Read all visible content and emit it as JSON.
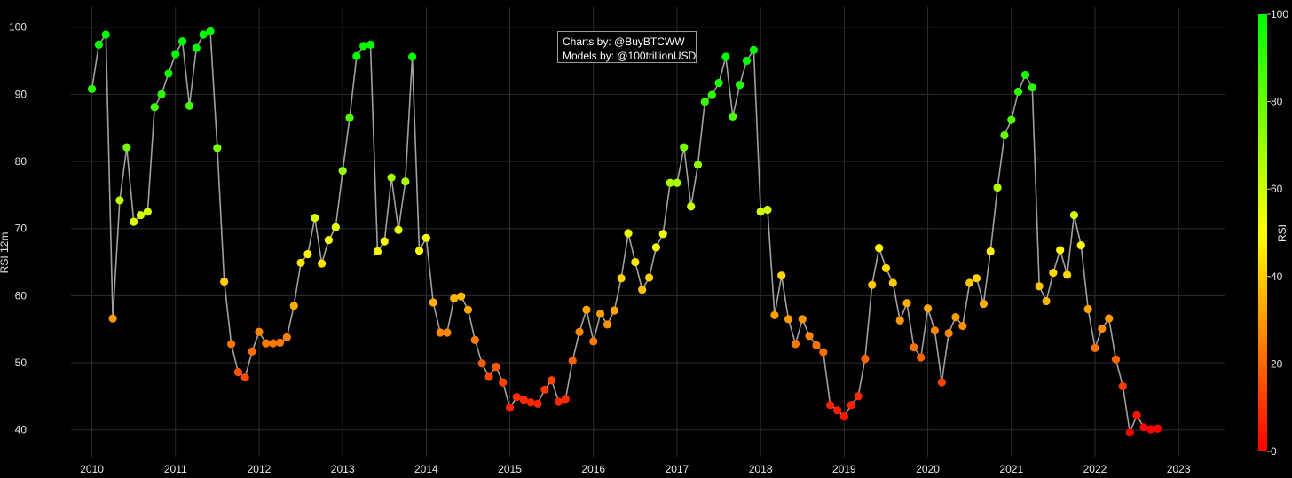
{
  "credits": {
    "line1": "Charts by: @BuyBTCWW",
    "line2": "Models by: @100trillionUSD"
  },
  "chart_data": {
    "type": "scatter",
    "title": "",
    "xlabel": "",
    "ylabel": "RSI 12m",
    "xlim": [
      2009.75,
      2023.55
    ],
    "ylim": [
      36,
      103
    ],
    "y_ticks": [
      40,
      50,
      60,
      70,
      80,
      90,
      100
    ],
    "x_ticks": [
      2010,
      2011,
      2012,
      2013,
      2014,
      2015,
      2016,
      2017,
      2018,
      2019,
      2020,
      2021,
      2022,
      2023
    ],
    "grid": true,
    "line_color": "#a0a0a0",
    "colorbar": {
      "label": "RSI",
      "ticks": [
        0,
        20,
        40,
        60,
        80,
        100
      ],
      "colors": [
        "#ff0000",
        "#ffff00",
        "#00ff00"
      ]
    },
    "series": [
      {
        "x": [
          2010.0,
          2010.083,
          2010.167,
          2010.25,
          2010.333,
          2010.417,
          2010.5,
          2010.583,
          2010.667,
          2010.75,
          2010.833,
          2010.917,
          2011.0,
          2011.083,
          2011.167,
          2011.25,
          2011.333,
          2011.417,
          2011.5,
          2011.583,
          2011.667,
          2011.75,
          2011.833,
          2011.917,
          2012.0,
          2012.083,
          2012.167,
          2012.25,
          2012.333,
          2012.417,
          2012.5,
          2012.583,
          2012.667,
          2012.75,
          2012.833,
          2012.917,
          2013.0,
          2013.083,
          2013.167,
          2013.25,
          2013.333,
          2013.417,
          2013.5,
          2013.583,
          2013.667,
          2013.75,
          2013.833,
          2013.917,
          2014.0,
          2014.083,
          2014.167,
          2014.25,
          2014.333,
          2014.417,
          2014.5,
          2014.583,
          2014.667,
          2014.75,
          2014.833,
          2014.917,
          2015.0,
          2015.083,
          2015.167,
          2015.25,
          2015.333,
          2015.417,
          2015.5,
          2015.583,
          2015.667,
          2015.75,
          2015.833,
          2015.917,
          2016.0,
          2016.083,
          2016.167,
          2016.25,
          2016.333,
          2016.417,
          2016.5,
          2016.583,
          2016.667,
          2016.75,
          2016.833,
          2016.917,
          2017.0,
          2017.083,
          2017.167,
          2017.25,
          2017.333,
          2017.417,
          2017.5,
          2017.583,
          2017.667,
          2017.75,
          2017.833,
          2017.917,
          2018.0,
          2018.083,
          2018.167,
          2018.25,
          2018.333,
          2018.417,
          2018.5,
          2018.583,
          2018.667,
          2018.75,
          2018.833,
          2018.917,
          2019.0,
          2019.083,
          2019.167,
          2019.25,
          2019.333,
          2019.417,
          2019.5,
          2019.583,
          2019.667,
          2019.75,
          2019.833,
          2019.917,
          2020.0,
          2020.083,
          2020.167,
          2020.25,
          2020.333,
          2020.417,
          2020.5,
          2020.583,
          2020.667,
          2020.75,
          2020.833,
          2020.917,
          2021.0,
          2021.083,
          2021.167,
          2021.25,
          2021.333,
          2021.417,
          2021.5,
          2021.583,
          2021.667,
          2021.75,
          2021.833,
          2021.917,
          2022.0,
          2022.083,
          2022.167,
          2022.25,
          2022.333,
          2022.417,
          2022.5,
          2022.583,
          2022.667,
          2022.75
        ],
        "y": [
          90.8,
          97.4,
          98.9,
          56.6,
          74.2,
          82.1,
          71.0,
          72.0,
          72.5,
          88.1,
          90.0,
          93.1,
          96.0,
          97.9,
          88.3,
          96.9,
          98.9,
          99.4,
          82.0,
          62.1,
          52.8,
          48.6,
          47.8,
          51.7,
          54.6,
          52.9,
          52.9,
          53.0,
          53.8,
          58.5,
          64.9,
          66.2,
          71.6,
          64.8,
          68.3,
          70.2,
          78.6,
          86.5,
          95.7,
          97.2,
          97.4,
          66.6,
          68.1,
          77.6,
          69.8,
          77.0,
          95.6,
          66.7,
          68.6,
          59.0,
          54.5,
          54.5,
          59.6,
          59.9,
          57.9,
          53.4,
          49.9,
          47.9,
          49.4,
          47.1,
          43.3,
          44.9,
          44.5,
          44.1,
          43.9,
          46.0,
          47.4,
          44.2,
          44.6,
          50.3,
          54.6,
          57.9,
          53.2,
          57.3,
          55.7,
          57.8,
          62.6,
          69.3,
          65.0,
          60.9,
          62.7,
          67.2,
          69.2,
          76.8,
          76.8,
          82.1,
          73.3,
          79.5,
          88.9,
          89.9,
          91.7,
          95.6,
          86.7,
          91.4,
          95.0,
          96.6,
          72.5,
          72.8,
          57.1,
          63.0,
          56.5,
          52.8,
          56.5,
          54.0,
          52.6,
          51.6,
          43.7,
          42.9,
          42.0,
          43.7,
          45.0,
          50.6,
          61.6,
          67.1,
          64.1,
          61.9,
          56.3,
          58.9,
          52.3,
          50.8,
          58.1,
          54.8,
          47.1,
          54.4,
          56.8,
          55.5,
          61.9,
          62.6,
          58.8,
          66.6,
          76.1,
          83.9,
          86.2,
          90.4,
          92.9,
          91.0,
          61.4,
          59.2,
          63.4,
          66.8,
          63.1,
          72.0,
          67.5,
          58.0,
          52.2,
          55.1,
          56.6,
          50.5,
          46.5,
          39.6,
          42.2,
          40.4,
          40.1,
          40.2
        ]
      }
    ]
  }
}
